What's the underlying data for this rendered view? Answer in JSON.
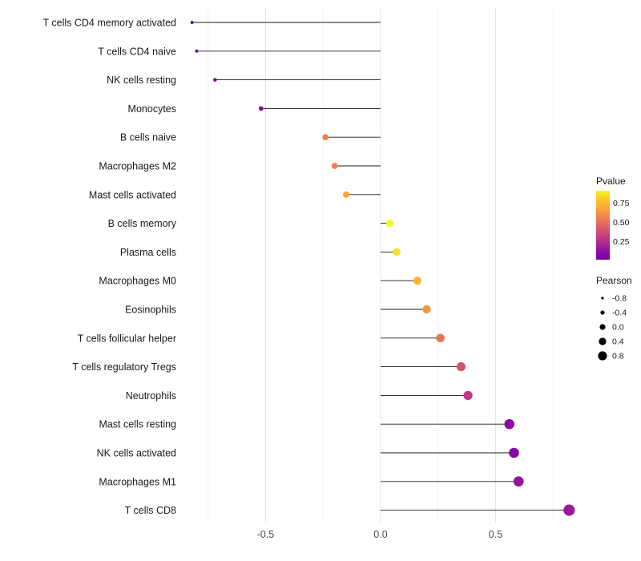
{
  "chart_data": {
    "type": "lollipop",
    "title": "",
    "xlabel": "",
    "ylabel": "",
    "points": [
      {
        "label": "T cells CD4 memory activated",
        "pearson": -0.82,
        "color": "#6300A7"
      },
      {
        "label": "T cells CD4 naive",
        "pearson": -0.8,
        "color": "#6A00A8"
      },
      {
        "label": "NK cells resting",
        "pearson": -0.72,
        "color": "#7D03A8"
      },
      {
        "label": "Monocytes",
        "pearson": -0.52,
        "color": "#8606A6"
      },
      {
        "label": "B cells naive",
        "pearson": -0.24,
        "color": "#ED7953"
      },
      {
        "label": "Macrophages M2",
        "pearson": -0.2,
        "color": "#F4854A"
      },
      {
        "label": "Mast cells activated",
        "pearson": -0.15,
        "color": "#FCA636"
      },
      {
        "label": "B cells memory",
        "pearson": 0.04,
        "color": "#F0F921"
      },
      {
        "label": "Plasma cells",
        "pearson": 0.07,
        "color": "#F3E228"
      },
      {
        "label": "Macrophages M0",
        "pearson": 0.16,
        "color": "#FDB130"
      },
      {
        "label": "Eosinophils",
        "pearson": 0.2,
        "color": "#F89441"
      },
      {
        "label": "T cells follicular helper",
        "pearson": 0.26,
        "color": "#E97257"
      },
      {
        "label": "T cells regulatory  Tregs",
        "pearson": 0.35,
        "color": "#D5536F"
      },
      {
        "label": "Neutrophils",
        "pearson": 0.38,
        "color": "#BE3885"
      },
      {
        "label": "Mast cells resting",
        "pearson": 0.56,
        "color": "#8B0AA5"
      },
      {
        "label": "NK cells activated",
        "pearson": 0.58,
        "color": "#8606A6"
      },
      {
        "label": "Macrophages M1",
        "pearson": 0.6,
        "color": "#9511A1"
      },
      {
        "label": "T cells CD8",
        "pearson": 0.82,
        "color": "#9C179E"
      }
    ],
    "x_axis": {
      "major_ticks": [
        -0.5,
        0.0,
        0.5
      ],
      "tick_labels": [
        "-0.5",
        "0.0",
        "0.5"
      ],
      "minor_ticks": [
        -0.75,
        -0.25,
        0.25,
        0.75
      ],
      "min": -0.86,
      "max": 0.95
    },
    "legend_pvalue": {
      "title": "Pvalue",
      "tick_labels": [
        "0.75",
        "0.50",
        "0.25"
      ],
      "gradient": [
        "#F0F921",
        "#FDC527",
        "#FCA636",
        "#F2844B",
        "#E16462",
        "#CC4778",
        "#B12A90",
        "#8F0DA4",
        "#7301A8"
      ]
    },
    "legend_pearson": {
      "title": "Pearson",
      "entries": [
        {
          "label": "-0.8",
          "value": -0.8
        },
        {
          "label": "-0.4",
          "value": -0.4
        },
        {
          "label": "0.0",
          "value": 0.0
        },
        {
          "label": "0.4",
          "value": 0.4
        },
        {
          "label": "0.8",
          "value": 0.8
        }
      ]
    },
    "style": {
      "stem_color": "#1a1a1a",
      "grid_major_color": "#e4e4e4",
      "grid_minor_color": "#f2f2f2",
      "axis_text_color": "#4d4d4d",
      "label_text_color": "#1a1a1a"
    }
  }
}
